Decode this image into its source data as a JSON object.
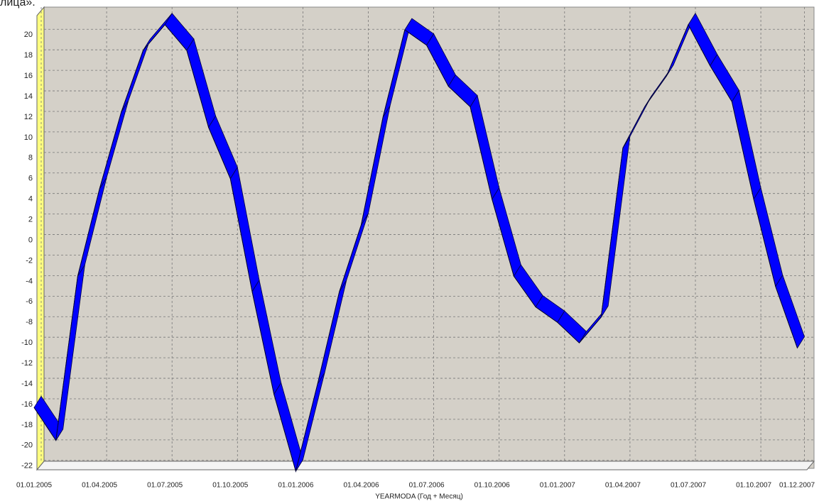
{
  "caption": "лица».",
  "chart_data": {
    "type": "ribbon-line",
    "x_label": "YEARMODA (Год + Месяц)",
    "categories": [
      "01.01.2005",
      null,
      null,
      "01.04.2005",
      null,
      null,
      "01.07.2005",
      null,
      null,
      "01.10.2005",
      null,
      null,
      "01.01.2006",
      null,
      null,
      "01.04.2006",
      null,
      null,
      "01.07.2006",
      null,
      null,
      "01.10.2006",
      null,
      null,
      "01.01.2007",
      null,
      null,
      "01.04.2007",
      null,
      null,
      "01.07.2007",
      null,
      null,
      "01.10.2007",
      null,
      "01.12.2007"
    ],
    "series": [
      {
        "color": "#0000ff",
        "values": [
          -16.3,
          -19.5,
          -3.5,
          5,
          12.5,
          18.5,
          21,
          18.5,
          11,
          6,
          -5,
          -15,
          -22.5,
          -14,
          -5,
          1.5,
          12,
          20.5,
          19,
          15,
          13,
          4,
          -3.5,
          -6.5,
          -8,
          -10,
          -7.5,
          9,
          13,
          16,
          21,
          17,
          13.5,
          4,
          -4.5,
          -10.5
        ]
      }
    ],
    "ylim": [
      -22.5,
      22.3
    ],
    "yticks": [
      -22,
      -20,
      -18,
      -16,
      -14,
      -12,
      -10,
      -8,
      -6,
      -4,
      -2,
      0,
      2,
      4,
      6,
      8,
      10,
      12,
      14,
      16,
      18,
      20
    ],
    "grid": true
  }
}
